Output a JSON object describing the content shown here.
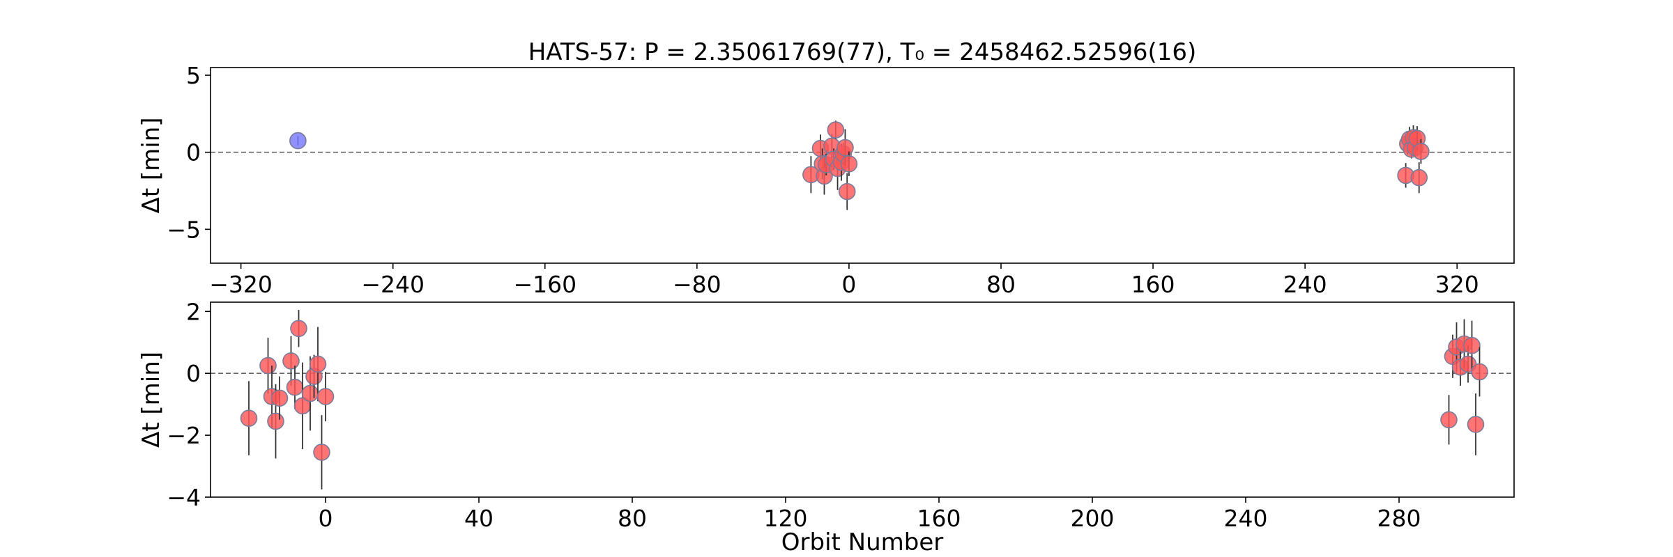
{
  "chart_data": [
    {
      "type": "scatter",
      "title": "HATS-57: P = 2.35061769(77), T₀ = 2458462.52596(16)",
      "xlabel": "",
      "ylabel": "Δt [min]",
      "xlim": [
        -336,
        350
      ],
      "ylim": [
        -7.2,
        5.5
      ],
      "xticks": [
        -320,
        -240,
        -160,
        -80,
        0,
        80,
        160,
        240,
        320
      ],
      "xtick_labels": [
        "−320",
        "−240",
        "−160",
        "−80",
        "0",
        "80",
        "160",
        "240",
        "320"
      ],
      "yticks": [
        -5,
        0,
        5
      ],
      "ytick_labels": [
        "−5",
        "0",
        "5"
      ],
      "reference_line": 0,
      "grid": false,
      "series": [
        {
          "color": "#7777ff",
          "points": [
            {
              "x": -290,
              "y": 0.75,
              "err": 0.3
            }
          ]
        },
        {
          "color": "#ff5555",
          "points": [
            {
              "x": -20,
              "y": -1.45,
              "err": 1.2
            },
            {
              "x": -15,
              "y": 0.25,
              "err": 0.9
            },
            {
              "x": -14,
              "y": -0.75,
              "err": 1.0
            },
            {
              "x": -13,
              "y": -1.55,
              "err": 1.2
            },
            {
              "x": -12,
              "y": -0.8,
              "err": 0.7
            },
            {
              "x": -9,
              "y": 0.4,
              "err": 0.8
            },
            {
              "x": -8,
              "y": -0.45,
              "err": 0.7
            },
            {
              "x": -7,
              "y": 1.45,
              "err": 0.6
            },
            {
              "x": -6,
              "y": -1.05,
              "err": 1.4
            },
            {
              "x": -4,
              "y": -0.65,
              "err": 1.2
            },
            {
              "x": -3,
              "y": -0.1,
              "err": 0.7
            },
            {
              "x": -2,
              "y": 0.3,
              "err": 1.2
            },
            {
              "x": -1,
              "y": -2.55,
              "err": 1.2
            },
            {
              "x": 0,
              "y": -0.75,
              "err": 0.8
            },
            {
              "x": 293,
              "y": -1.5,
              "err": 0.8
            },
            {
              "x": 294,
              "y": 0.55,
              "err": 0.7
            },
            {
              "x": 295,
              "y": 0.85,
              "err": 0.8
            },
            {
              "x": 296,
              "y": 0.2,
              "err": 0.6
            },
            {
              "x": 297,
              "y": 0.95,
              "err": 0.8
            },
            {
              "x": 298,
              "y": 0.3,
              "err": 0.6
            },
            {
              "x": 299,
              "y": 0.9,
              "err": 0.8
            },
            {
              "x": 300,
              "y": -1.65,
              "err": 1.0
            },
            {
              "x": 301,
              "y": 0.05,
              "err": 0.8
            }
          ]
        }
      ]
    },
    {
      "type": "scatter",
      "title": "",
      "xlabel": "Orbit Number",
      "ylabel": "Δt [min]",
      "xlim": [
        -30,
        310
      ],
      "ylim": [
        -4.0,
        2.3
      ],
      "xticks": [
        0,
        40,
        80,
        120,
        160,
        200,
        240,
        280
      ],
      "xtick_labels": [
        "0",
        "40",
        "80",
        "120",
        "160",
        "200",
        "240",
        "280"
      ],
      "yticks": [
        -4,
        -2,
        0,
        2
      ],
      "ytick_labels": [
        "−4",
        "−2",
        "0",
        "2"
      ],
      "reference_line": 0,
      "grid": false,
      "series": [
        {
          "color": "#ff5555",
          "points": [
            {
              "x": -20,
              "y": -1.45,
              "err": 1.2
            },
            {
              "x": -15,
              "y": 0.25,
              "err": 0.9
            },
            {
              "x": -14,
              "y": -0.75,
              "err": 1.0
            },
            {
              "x": -13,
              "y": -1.55,
              "err": 1.2
            },
            {
              "x": -12,
              "y": -0.8,
              "err": 0.7
            },
            {
              "x": -9,
              "y": 0.4,
              "err": 0.8
            },
            {
              "x": -8,
              "y": -0.45,
              "err": 0.7
            },
            {
              "x": -7,
              "y": 1.45,
              "err": 0.6
            },
            {
              "x": -6,
              "y": -1.05,
              "err": 1.4
            },
            {
              "x": -4,
              "y": -0.65,
              "err": 1.2
            },
            {
              "x": -3,
              "y": -0.1,
              "err": 0.7
            },
            {
              "x": -2,
              "y": 0.3,
              "err": 1.2
            },
            {
              "x": -1,
              "y": -2.55,
              "err": 1.2
            },
            {
              "x": 0,
              "y": -0.75,
              "err": 0.8
            },
            {
              "x": 293,
              "y": -1.5,
              "err": 0.8
            },
            {
              "x": 294,
              "y": 0.55,
              "err": 0.7
            },
            {
              "x": 295,
              "y": 0.85,
              "err": 0.8
            },
            {
              "x": 296,
              "y": 0.2,
              "err": 0.6
            },
            {
              "x": 297,
              "y": 0.95,
              "err": 0.8
            },
            {
              "x": 298,
              "y": 0.3,
              "err": 0.6
            },
            {
              "x": 299,
              "y": 0.9,
              "err": 0.8
            },
            {
              "x": 300,
              "y": -1.65,
              "err": 1.0
            },
            {
              "x": 301,
              "y": 0.05,
              "err": 0.8
            }
          ]
        }
      ]
    }
  ]
}
